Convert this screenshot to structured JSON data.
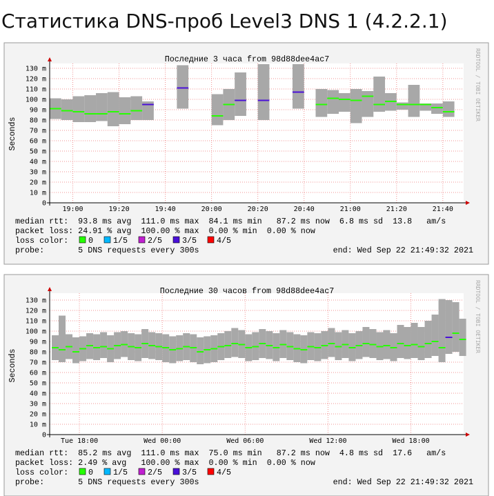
{
  "page_title": "Статистика DNS-проб Level3 DNS 1 (4.2.2.1)",
  "chart_data": [
    {
      "type": "smokeping",
      "title": "Последние 3 часа from 98d88dee4ac7",
      "ylabel": "Seconds",
      "side_text": "RRDTOOL / TOBI OETIKER",
      "xlim": [
        1130,
        1309
      ],
      "xticks": [
        {
          "value": 1140,
          "label": "19:00"
        },
        {
          "value": 1160,
          "label": "19:20"
        },
        {
          "value": 1180,
          "label": "19:40"
        },
        {
          "value": 1200,
          "label": "20:00"
        },
        {
          "value": 1220,
          "label": "20:20"
        },
        {
          "value": 1240,
          "label": "20:40"
        },
        {
          "value": 1260,
          "label": "21:00"
        },
        {
          "value": 1280,
          "label": "21:20"
        },
        {
          "value": 1300,
          "label": "21:40"
        }
      ],
      "ylim": [
        0,
        134.7
      ],
      "yticks": [
        0,
        {
          "value": 10,
          "label": "10 m"
        },
        {
          "value": 20,
          "label": "20 m"
        },
        {
          "value": 30,
          "label": "30 m"
        },
        {
          "value": 40,
          "label": "40 m"
        },
        {
          "value": 50,
          "label": "50 m"
        },
        {
          "value": 60,
          "label": "60 m"
        },
        {
          "value": 70,
          "label": "70 m"
        },
        {
          "value": 80,
          "label": "80 m"
        },
        {
          "value": 90,
          "label": "90 m"
        },
        {
          "value": 100,
          "label": "100 m"
        },
        {
          "value": 110,
          "label": "110 m"
        },
        {
          "value": 120,
          "label": "120 m"
        },
        {
          "value": 130,
          "label": "130 m"
        }
      ],
      "grid": true,
      "x": [
        1130,
        1135,
        1140,
        1145,
        1150,
        1155,
        1160,
        1165,
        1170,
        1185,
        1200,
        1205,
        1210,
        1220,
        1235,
        1245,
        1250,
        1255,
        1260,
        1265,
        1270,
        1275,
        1280,
        1285,
        1290,
        1295,
        1300
      ],
      "median": [
        91,
        89,
        88,
        86,
        86,
        88,
        86,
        89,
        95,
        111,
        84,
        95,
        99,
        99,
        107,
        95,
        101,
        100,
        99,
        103,
        95,
        98,
        95,
        95,
        95,
        92,
        88
      ],
      "min": [
        81,
        80,
        78,
        78,
        79,
        74,
        76,
        80,
        80,
        91,
        75,
        80,
        84,
        80,
        91,
        83,
        86,
        88,
        77,
        83,
        88,
        89,
        90,
        83,
        89,
        86,
        83
      ],
      "max": [
        101,
        100,
        103,
        104,
        106,
        107,
        102,
        103,
        98,
        133,
        105,
        110,
        126,
        134,
        134,
        110,
        109,
        106,
        110,
        108,
        122,
        106,
        97,
        114,
        96,
        96,
        98
      ],
      "loss_level": [
        0,
        0,
        0,
        0,
        0,
        0,
        0,
        0,
        3,
        3,
        0,
        0,
        3,
        3,
        3,
        0,
        0,
        0,
        0,
        0,
        0,
        0,
        0,
        0,
        0,
        0,
        0
      ],
      "smoke_color": "#a8a8a8",
      "stats": [
        "median rtt:  93.8 ms avg  111.0 ms max  84.1 ms min   87.2 ms now  6.8 ms sd  13.8   am/s",
        "packet loss: 24.91 % avg  100.00 % max  0.00 % min  0.00 % now"
      ],
      "legend_title": "loss color:",
      "legend": [
        {
          "name": "0",
          "color": "#26ff00"
        },
        {
          "name": "1/5",
          "color": "#00b8ff"
        },
        {
          "name": "2/5",
          "color": "#c020d0"
        },
        {
          "name": "3/5",
          "color": "#4a10d8"
        },
        {
          "name": "4/5",
          "color": "#ff0000"
        }
      ],
      "probe": "probe:       5 DNS requests every 300s",
      "end": "end: Wed Sep 22 21:49:32 2021"
    },
    {
      "type": "smokeping",
      "title": "Последние 30 часов from 98d88dee4ac7",
      "ylabel": "Seconds",
      "side_text": "RRDTOOL / TOBI OETIKER",
      "xlim": [
        15.85,
        45.82
      ],
      "xticks": [
        {
          "value": 18,
          "label": "Tue 18:00"
        },
        {
          "value": 24,
          "label": "Wed 00:00"
        },
        {
          "value": 30,
          "label": "Wed 06:00"
        },
        {
          "value": 36,
          "label": "Wed 12:00"
        },
        {
          "value": 42,
          "label": "Wed 18:00"
        }
      ],
      "ylim": [
        0,
        136.7
      ],
      "yticks": [
        0,
        {
          "value": 10,
          "label": "10 m"
        },
        {
          "value": 20,
          "label": "20 m"
        },
        {
          "value": 30,
          "label": "30 m"
        },
        {
          "value": 40,
          "label": "40 m"
        },
        {
          "value": 50,
          "label": "50 m"
        },
        {
          "value": 60,
          "label": "60 m"
        },
        {
          "value": 70,
          "label": "70 m"
        },
        {
          "value": 80,
          "label": "80 m"
        },
        {
          "value": 90,
          "label": "90 m"
        },
        {
          "value": 100,
          "label": "100 m"
        },
        {
          "value": 110,
          "label": "110 m"
        },
        {
          "value": 120,
          "label": "120 m"
        },
        {
          "value": 130,
          "label": "130 m"
        }
      ],
      "grid": true,
      "x": [
        16,
        16.5,
        17,
        17.5,
        18,
        18.5,
        19,
        19.5,
        20,
        20.5,
        21,
        21.5,
        22,
        22.5,
        23,
        23.5,
        24,
        24.5,
        25,
        25.5,
        26,
        26.5,
        27,
        27.5,
        28,
        28.5,
        29,
        29.5,
        30,
        30.5,
        31,
        31.5,
        32,
        32.5,
        33,
        33.5,
        34,
        34.5,
        35,
        35.5,
        36,
        36.5,
        37,
        37.5,
        38,
        38.5,
        39,
        39.5,
        40,
        40.5,
        41,
        41.5,
        42,
        42.5,
        43,
        43.5,
        44,
        44.5,
        45,
        45.5
      ],
      "median": [
        84,
        82,
        85,
        80,
        83,
        86,
        84,
        85,
        83,
        86,
        87,
        85,
        84,
        88,
        86,
        85,
        84,
        82,
        83,
        85,
        84,
        80,
        82,
        83,
        85,
        86,
        88,
        87,
        84,
        85,
        88,
        86,
        84,
        87,
        85,
        83,
        82,
        85,
        84,
        86,
        88,
        85,
        87,
        84,
        86,
        88,
        87,
        85,
        86,
        84,
        88,
        86,
        87,
        85,
        88,
        90,
        84,
        94,
        98,
        92
      ],
      "min": [
        72,
        70,
        73,
        69,
        71,
        73,
        72,
        74,
        70,
        73,
        75,
        72,
        71,
        74,
        73,
        72,
        70,
        69,
        71,
        72,
        70,
        68,
        69,
        70,
        72,
        74,
        75,
        74,
        71,
        72,
        74,
        73,
        71,
        74,
        72,
        70,
        69,
        72,
        71,
        73,
        75,
        72,
        74,
        71,
        73,
        75,
        74,
        72,
        73,
        71,
        74,
        73,
        74,
        72,
        74,
        76,
        70,
        78,
        80,
        76
      ],
      "max": [
        96,
        115,
        97,
        94,
        95,
        98,
        97,
        99,
        96,
        99,
        100,
        98,
        97,
        102,
        99,
        98,
        97,
        95,
        96,
        98,
        97,
        94,
        95,
        96,
        98,
        100,
        103,
        101,
        97,
        99,
        102,
        100,
        98,
        101,
        99,
        97,
        96,
        99,
        98,
        100,
        103,
        99,
        101,
        98,
        100,
        104,
        102,
        99,
        101,
        98,
        106,
        104,
        108,
        104,
        110,
        116,
        131,
        130,
        128,
        112
      ],
      "loss_level": [
        0,
        0,
        0,
        0,
        0,
        0,
        0,
        0,
        0,
        0,
        0,
        0,
        0,
        0,
        0,
        0,
        0,
        0,
        0,
        0,
        0,
        0,
        0,
        0,
        0,
        0,
        0,
        0,
        0,
        0,
        0,
        0,
        0,
        0,
        0,
        0,
        0,
        0,
        0,
        0,
        0,
        0,
        0,
        0,
        0,
        0,
        0,
        0,
        0,
        0,
        0,
        0,
        0,
        0,
        0,
        0,
        0,
        3,
        0,
        0
      ],
      "smoke_color": "#a8a8a8",
      "stats": [
        "median rtt:  85.2 ms avg  111.0 ms max  75.0 ms min   87.2 ms now  4.8 ms sd  17.6   am/s",
        "packet loss: 2.49 % avg   100.00 % max  0.00 % min  0.00 % now"
      ],
      "legend_title": "loss color:",
      "legend": [
        {
          "name": "0",
          "color": "#26ff00"
        },
        {
          "name": "1/5",
          "color": "#00b8ff"
        },
        {
          "name": "2/5",
          "color": "#c020d0"
        },
        {
          "name": "3/5",
          "color": "#4a10d8"
        },
        {
          "name": "4/5",
          "color": "#ff0000"
        }
      ],
      "probe": "probe:       5 DNS requests every 300s",
      "end": "end: Wed Sep 22 21:49:32 2021"
    }
  ]
}
